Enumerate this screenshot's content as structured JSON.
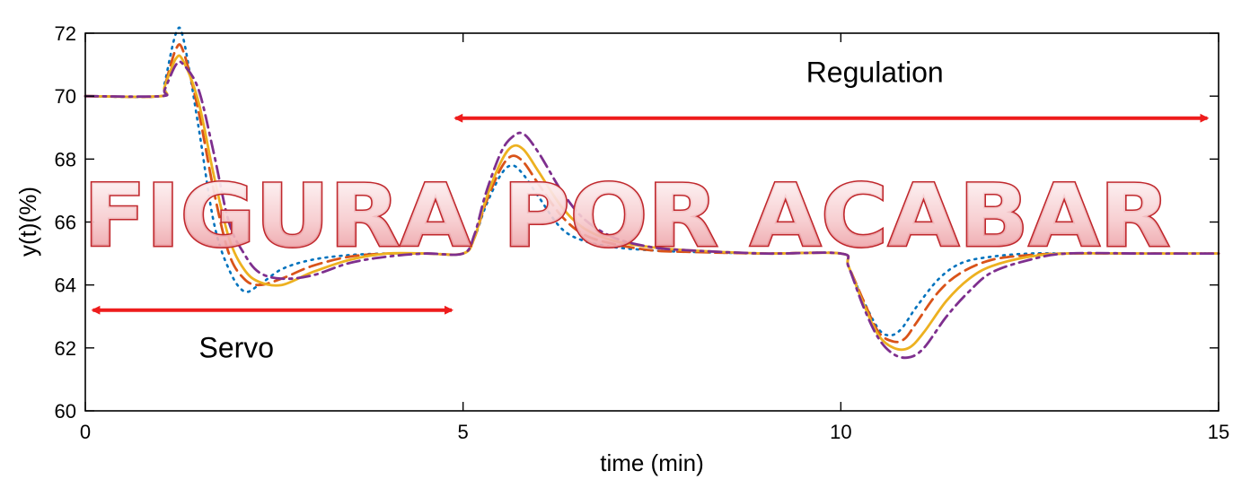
{
  "chart_data": {
    "type": "line",
    "xlabel": "time (min)",
    "ylabel": "y(t)(%)",
    "xlim": [
      0,
      15
    ],
    "ylim": [
      60,
      72
    ],
    "xticks": [
      0,
      5,
      10,
      15
    ],
    "yticks": [
      60,
      62,
      64,
      66,
      68,
      70,
      72
    ],
    "grid": false,
    "legend": null,
    "series": [
      {
        "style": "dotted",
        "color": "#0072bd",
        "x": [
          0,
          1.0,
          1.05,
          1.2,
          1.3,
          1.5,
          1.7,
          1.9,
          2.1,
          2.3,
          2.6,
          3.0,
          3.5,
          4.0,
          4.5,
          5.0,
          5.15,
          5.3,
          5.5,
          5.65,
          5.8,
          6.0,
          6.3,
          6.6,
          7.0,
          7.5,
          8.0,
          9.0,
          10.0,
          10.1,
          10.3,
          10.5,
          10.65,
          10.8,
          11.0,
          11.3,
          11.6,
          12.0,
          12.5,
          13.0,
          14.0,
          15.0
        ],
        "y": [
          70,
          70,
          70.4,
          72.0,
          71.8,
          69.0,
          66.0,
          64.5,
          63.8,
          64.0,
          64.5,
          64.8,
          64.95,
          65.0,
          65.0,
          65.0,
          65.5,
          66.5,
          67.5,
          67.8,
          67.5,
          66.8,
          65.8,
          65.4,
          65.2,
          65.1,
          65.05,
          65.0,
          65.0,
          64.6,
          63.5,
          62.6,
          62.4,
          62.6,
          63.3,
          64.2,
          64.7,
          64.9,
          65.0,
          65.0,
          65.0,
          65.0
        ]
      },
      {
        "style": "dashed",
        "color": "#d95319",
        "x": [
          0,
          1.0,
          1.05,
          1.2,
          1.3,
          1.5,
          1.7,
          1.9,
          2.1,
          2.3,
          2.6,
          3.0,
          3.5,
          4.0,
          4.5,
          5.0,
          5.15,
          5.3,
          5.5,
          5.65,
          5.8,
          6.0,
          6.3,
          6.6,
          7.0,
          7.5,
          8.0,
          9.0,
          10.0,
          10.1,
          10.3,
          10.5,
          10.7,
          10.85,
          11.0,
          11.3,
          11.6,
          12.0,
          12.5,
          13.0,
          14.0,
          15.0
        ],
        "y": [
          70,
          70,
          70.3,
          71.5,
          71.4,
          69.5,
          67.0,
          65.0,
          64.2,
          64.0,
          64.2,
          64.6,
          64.9,
          65.0,
          65.0,
          65.0,
          65.5,
          66.6,
          67.7,
          68.1,
          67.9,
          67.2,
          66.2,
          65.6,
          65.3,
          65.1,
          65.05,
          65.0,
          65.0,
          64.6,
          63.5,
          62.5,
          62.2,
          62.3,
          62.8,
          63.8,
          64.4,
          64.8,
          64.95,
          65.0,
          65.0,
          65.0
        ]
      },
      {
        "style": "solid",
        "color": "#edb120",
        "x": [
          0,
          1.0,
          1.05,
          1.2,
          1.3,
          1.5,
          1.7,
          1.9,
          2.1,
          2.3,
          2.6,
          3.0,
          3.5,
          4.0,
          4.5,
          5.0,
          5.15,
          5.3,
          5.5,
          5.65,
          5.8,
          6.0,
          6.3,
          6.6,
          7.0,
          7.5,
          8.0,
          9.0,
          10.0,
          10.1,
          10.3,
          10.5,
          10.7,
          10.9,
          11.1,
          11.4,
          11.7,
          12.0,
          12.5,
          13.0,
          14.0,
          15.0
        ],
        "y": [
          70,
          70,
          70.3,
          71.2,
          71.1,
          69.8,
          67.5,
          65.5,
          64.5,
          64.1,
          64.0,
          64.4,
          64.8,
          65.0,
          65.0,
          65.0,
          65.5,
          66.7,
          67.9,
          68.4,
          68.3,
          67.6,
          66.5,
          65.8,
          65.4,
          65.2,
          65.1,
          65.0,
          65.0,
          64.6,
          63.4,
          62.4,
          62.0,
          62.0,
          62.5,
          63.5,
          64.2,
          64.6,
          64.9,
          65.0,
          65.0,
          65.0
        ]
      },
      {
        "style": "dashdot",
        "color": "#7e2f8e",
        "x": [
          0,
          1.0,
          1.05,
          1.2,
          1.3,
          1.5,
          1.7,
          1.9,
          2.1,
          2.3,
          2.6,
          3.0,
          3.5,
          4.0,
          4.5,
          5.0,
          5.15,
          5.3,
          5.5,
          5.65,
          5.8,
          6.0,
          6.3,
          6.6,
          7.0,
          7.5,
          8.0,
          9.0,
          10.0,
          10.1,
          10.3,
          10.5,
          10.7,
          10.9,
          11.1,
          11.4,
          11.7,
          12.0,
          12.5,
          13.0,
          14.0,
          15.0
        ],
        "y": [
          70,
          70,
          70.2,
          71.0,
          71.0,
          70.2,
          68.2,
          66.0,
          65.0,
          64.4,
          64.2,
          64.3,
          64.7,
          64.9,
          65.0,
          65.0,
          65.6,
          66.9,
          68.2,
          68.7,
          68.8,
          68.2,
          67.0,
          66.1,
          65.5,
          65.2,
          65.1,
          65.0,
          65.0,
          64.6,
          63.3,
          62.3,
          61.8,
          61.7,
          62.0,
          63.0,
          63.8,
          64.4,
          64.8,
          65.0,
          65.0,
          65.0
        ]
      }
    ],
    "annotations": [
      {
        "text": "Regulation",
        "x": 10.45,
        "y": 70.45
      },
      {
        "text": "Servo",
        "x": 2.0,
        "y": 61.7
      }
    ],
    "arrows": [
      {
        "x1": 4.9,
        "x2": 14.85,
        "y": 69.3
      },
      {
        "x1": 0.1,
        "x2": 4.85,
        "y": 63.2
      }
    ],
    "watermark": "FIGURA POR ACABAR"
  }
}
